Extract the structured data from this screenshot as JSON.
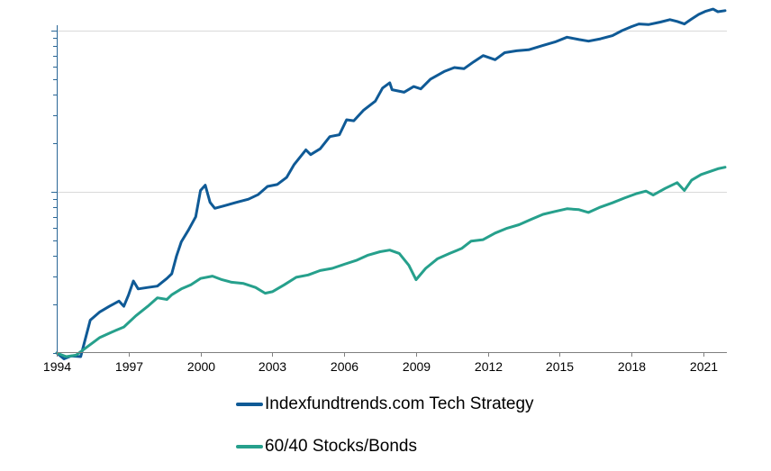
{
  "chart_data": {
    "type": "line",
    "y_scale": "log",
    "grid": {
      "x": false,
      "y": true
    },
    "legend_position": "bottom",
    "xlim": [
      1994,
      2021.9
    ],
    "x_ticks": [
      1994,
      1997,
      2000,
      2003,
      2006,
      2009,
      2012,
      2015,
      2018,
      2021
    ],
    "x_tick_labels": [
      "1994",
      "1997",
      "2000",
      "2003",
      "2006",
      "2009",
      "2012",
      "2015",
      "2018",
      "2021"
    ],
    "ylim": [
      0.85,
      150
    ],
    "y_major_gridlines": [
      10,
      100
    ],
    "series": [
      {
        "name": "Indexfundtrends.com Tech Strategy",
        "color": "#0f5a96",
        "points": [
          [
            1994.0,
            1.0
          ],
          [
            1994.3,
            0.92
          ],
          [
            1994.6,
            0.96
          ],
          [
            1995.0,
            0.95
          ],
          [
            1995.4,
            1.6
          ],
          [
            1995.8,
            1.8
          ],
          [
            1996.2,
            1.95
          ],
          [
            1996.6,
            2.1
          ],
          [
            1996.8,
            1.95
          ],
          [
            1997.0,
            2.3
          ],
          [
            1997.2,
            2.8
          ],
          [
            1997.4,
            2.5
          ],
          [
            1997.8,
            2.55
          ],
          [
            1998.2,
            2.6
          ],
          [
            1998.6,
            2.9
          ],
          [
            1998.8,
            3.1
          ],
          [
            1999.0,
            4.0
          ],
          [
            1999.2,
            4.9
          ],
          [
            1999.5,
            5.8
          ],
          [
            1999.8,
            7.0
          ],
          [
            2000.0,
            10.2
          ],
          [
            2000.2,
            11.0
          ],
          [
            2000.4,
            8.6
          ],
          [
            2000.6,
            7.9
          ],
          [
            2001.0,
            8.2
          ],
          [
            2001.5,
            8.6
          ],
          [
            2002.0,
            9.0
          ],
          [
            2002.4,
            9.6
          ],
          [
            2002.8,
            10.8
          ],
          [
            2003.2,
            11.1
          ],
          [
            2003.6,
            12.3
          ],
          [
            2003.9,
            14.7
          ],
          [
            2004.4,
            18.2
          ],
          [
            2004.6,
            17.0
          ],
          [
            2005.0,
            18.5
          ],
          [
            2005.4,
            22.0
          ],
          [
            2005.8,
            22.6
          ],
          [
            2006.1,
            28.0
          ],
          [
            2006.4,
            27.6
          ],
          [
            2006.8,
            32.0
          ],
          [
            2007.3,
            36.5
          ],
          [
            2007.6,
            44.0
          ],
          [
            2007.9,
            47.5
          ],
          [
            2008.0,
            43.0
          ],
          [
            2008.5,
            41.5
          ],
          [
            2008.9,
            45.0
          ],
          [
            2009.2,
            43.5
          ],
          [
            2009.6,
            50.0
          ],
          [
            2010.2,
            56.0
          ],
          [
            2010.6,
            59.0
          ],
          [
            2011.0,
            58.0
          ],
          [
            2011.4,
            64.0
          ],
          [
            2011.8,
            70.0
          ],
          [
            2012.3,
            66.0
          ],
          [
            2012.7,
            73.0
          ],
          [
            2013.2,
            75.0
          ],
          [
            2013.7,
            76.0
          ],
          [
            2014.3,
            81.0
          ],
          [
            2014.8,
            85.0
          ],
          [
            2015.3,
            91.0
          ],
          [
            2015.8,
            88.0
          ],
          [
            2016.2,
            86.0
          ],
          [
            2016.7,
            89.0
          ],
          [
            2017.2,
            93.0
          ],
          [
            2017.6,
            100.0
          ],
          [
            2018.0,
            106.0
          ],
          [
            2018.3,
            110.0
          ],
          [
            2018.7,
            109.0
          ],
          [
            2019.2,
            113.0
          ],
          [
            2019.6,
            117.0
          ],
          [
            2019.9,
            114.0
          ],
          [
            2020.2,
            110.0
          ],
          [
            2020.5,
            118.0
          ],
          [
            2020.8,
            126.0
          ],
          [
            2021.1,
            132.0
          ],
          [
            2021.4,
            136.0
          ],
          [
            2021.6,
            131.0
          ],
          [
            2021.9,
            133.0
          ]
        ]
      },
      {
        "name": "60/40 Stocks/Bonds",
        "color": "#26a08c",
        "points": [
          [
            1994.0,
            1.0
          ],
          [
            1994.4,
            0.95
          ],
          [
            1994.8,
            0.97
          ],
          [
            1995.3,
            1.1
          ],
          [
            1995.8,
            1.25
          ],
          [
            1996.3,
            1.35
          ],
          [
            1996.8,
            1.45
          ],
          [
            1997.3,
            1.7
          ],
          [
            1997.8,
            1.95
          ],
          [
            1998.2,
            2.2
          ],
          [
            1998.6,
            2.15
          ],
          [
            1998.8,
            2.3
          ],
          [
            1999.2,
            2.5
          ],
          [
            1999.6,
            2.65
          ],
          [
            2000.0,
            2.9
          ],
          [
            2000.5,
            3.0
          ],
          [
            2000.9,
            2.85
          ],
          [
            2001.3,
            2.75
          ],
          [
            2001.8,
            2.7
          ],
          [
            2002.3,
            2.55
          ],
          [
            2002.7,
            2.35
          ],
          [
            2003.0,
            2.4
          ],
          [
            2003.5,
            2.65
          ],
          [
            2004.0,
            2.95
          ],
          [
            2004.5,
            3.05
          ],
          [
            2005.0,
            3.25
          ],
          [
            2005.5,
            3.35
          ],
          [
            2006.0,
            3.55
          ],
          [
            2006.5,
            3.75
          ],
          [
            2007.0,
            4.05
          ],
          [
            2007.5,
            4.25
          ],
          [
            2007.9,
            4.35
          ],
          [
            2008.3,
            4.15
          ],
          [
            2008.7,
            3.5
          ],
          [
            2009.0,
            2.85
          ],
          [
            2009.4,
            3.35
          ],
          [
            2009.9,
            3.85
          ],
          [
            2010.4,
            4.15
          ],
          [
            2010.9,
            4.45
          ],
          [
            2011.3,
            4.95
          ],
          [
            2011.8,
            5.05
          ],
          [
            2012.3,
            5.55
          ],
          [
            2012.8,
            5.95
          ],
          [
            2013.3,
            6.25
          ],
          [
            2013.8,
            6.75
          ],
          [
            2014.3,
            7.25
          ],
          [
            2014.8,
            7.55
          ],
          [
            2015.3,
            7.85
          ],
          [
            2015.8,
            7.75
          ],
          [
            2016.2,
            7.45
          ],
          [
            2016.7,
            8.05
          ],
          [
            2017.2,
            8.55
          ],
          [
            2017.7,
            9.15
          ],
          [
            2018.2,
            9.75
          ],
          [
            2018.6,
            10.1
          ],
          [
            2018.9,
            9.55
          ],
          [
            2019.4,
            10.5
          ],
          [
            2019.9,
            11.4
          ],
          [
            2020.2,
            10.2
          ],
          [
            2020.5,
            11.8
          ],
          [
            2020.9,
            12.8
          ],
          [
            2021.3,
            13.4
          ],
          [
            2021.6,
            13.9
          ],
          [
            2021.9,
            14.2
          ]
        ]
      }
    ]
  }
}
